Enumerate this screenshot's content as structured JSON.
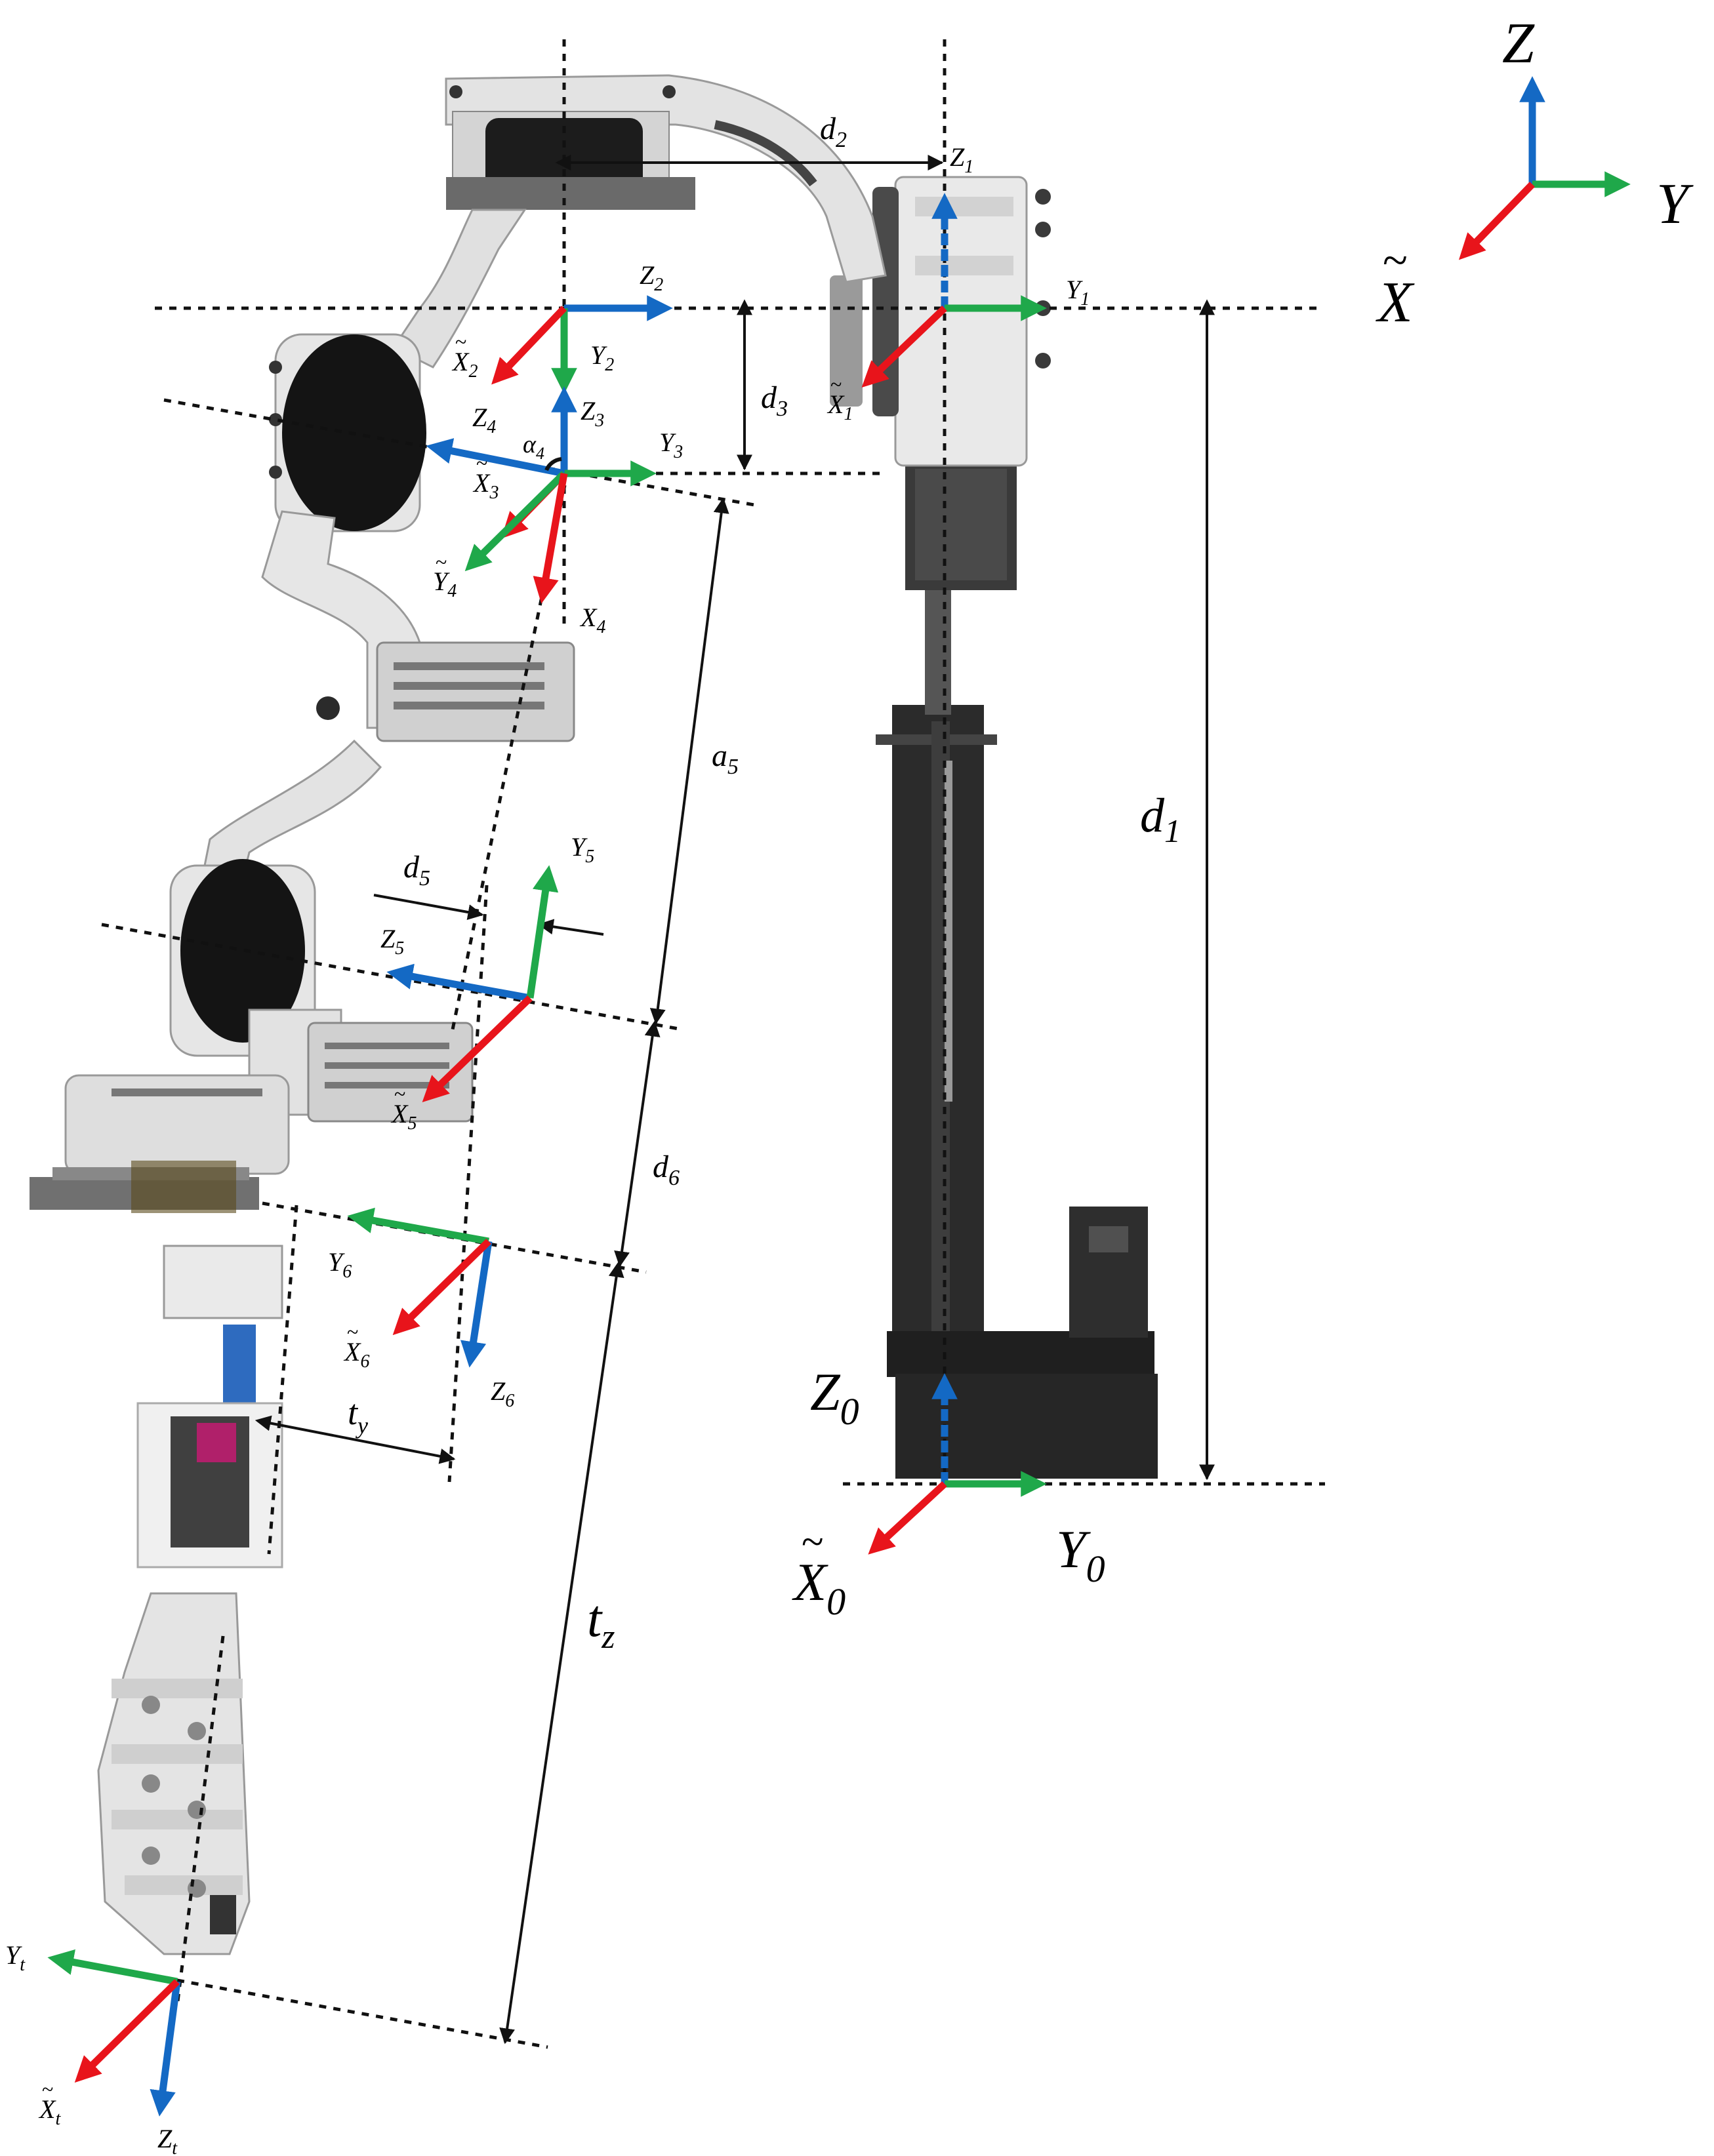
{
  "colors": {
    "x_axis": "#e8141b",
    "y_axis": "#1fa84a",
    "z_axis": "#1469c4",
    "robot_body": "#2a2a2a",
    "robot_shell": "#e6e6e6"
  },
  "global_frame": {
    "z": "Z",
    "y": "Y",
    "x": "X",
    "x_mark": "~"
  },
  "frames": {
    "f0": {
      "z": "Z",
      "z_sub": "0",
      "y": "Y",
      "y_sub": "0",
      "x": "X",
      "x_sub": "0",
      "x_mark": "~"
    },
    "f1": {
      "z": "Z",
      "z_sub": "1",
      "y": "Y",
      "y_sub": "1",
      "x": "X",
      "x_sub": "1",
      "x_mark": "~"
    },
    "f2": {
      "z": "Z",
      "z_sub": "2",
      "y": "Y",
      "y_sub": "2",
      "x": "X",
      "x_sub": "2",
      "x_mark": "~"
    },
    "f3": {
      "z": "Z",
      "z_sub": "3",
      "y": "Y",
      "y_sub": "3",
      "x": "X",
      "x_sub": "3",
      "x_mark": "~"
    },
    "f4": {
      "z": "Z",
      "z_sub": "4",
      "y": "Y",
      "y_sub": "4",
      "x": "X",
      "x_sub": "4",
      "x_mark": "~",
      "angle": "α",
      "angle_sub": "4"
    },
    "f5": {
      "z": "Z",
      "z_sub": "5",
      "y": "Y",
      "y_sub": "5",
      "x": "X",
      "x_sub": "5",
      "x_mark": "~"
    },
    "f6": {
      "z": "Z",
      "z_sub": "6",
      "y": "Y",
      "y_sub": "6",
      "x": "X",
      "x_sub": "6",
      "x_mark": "~"
    },
    "ft": {
      "z": "Z",
      "z_sub": "t",
      "y": "Y",
      "y_sub": "t",
      "x": "X",
      "x_sub": "t",
      "x_mark": "~"
    }
  },
  "dimensions": {
    "d1": {
      "sym": "d",
      "sub": "1"
    },
    "d2": {
      "sym": "d",
      "sub": "2"
    },
    "d3": {
      "sym": "d",
      "sub": "3"
    },
    "a5": {
      "sym": "a",
      "sub": "5"
    },
    "d5": {
      "sym": "d",
      "sub": "5"
    },
    "d6": {
      "sym": "d",
      "sub": "6"
    },
    "ty": {
      "sym": "t",
      "sub": "y"
    },
    "tz": {
      "sym": "t",
      "sub": "z"
    }
  }
}
